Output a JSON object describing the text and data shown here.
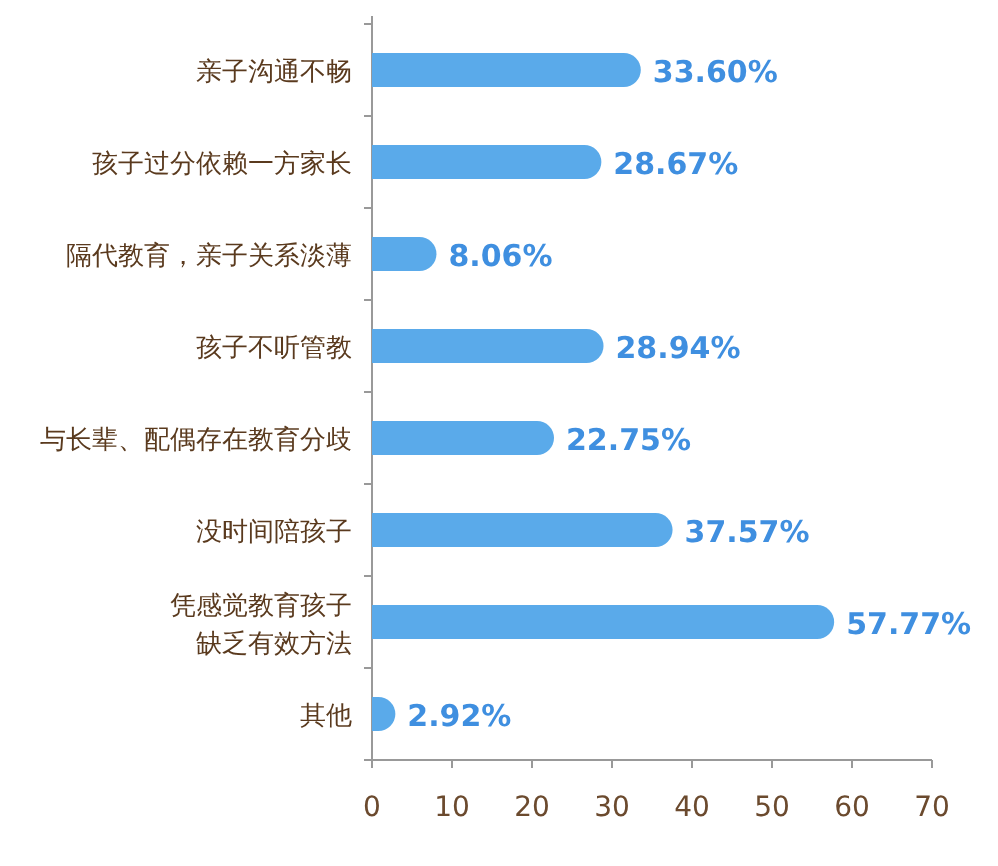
{
  "chart_data": {
    "type": "bar",
    "orientation": "horizontal",
    "categories": [
      "亲子沟通不畅",
      "孩子过分依赖一方家长",
      "隔代教育，亲子关系淡薄",
      "孩子不听管教",
      "与长辈、配偶存在教育分歧",
      "没时间陪孩子",
      "凭感觉教育孩子缺乏有效方法",
      "其他"
    ],
    "values": [
      33.6,
      28.67,
      8.06,
      28.94,
      22.75,
      37.57,
      57.77,
      2.92
    ],
    "value_labels": [
      "33.60%",
      "28.67%",
      "8.06%",
      "28.94%",
      "22.75%",
      "37.57%",
      "57.77%",
      "2.92%"
    ],
    "color": "#5aaaea",
    "xlim": [
      0,
      70
    ],
    "xticks": [
      0,
      10,
      20,
      30,
      40,
      50,
      60,
      70
    ],
    "grid": false
  }
}
